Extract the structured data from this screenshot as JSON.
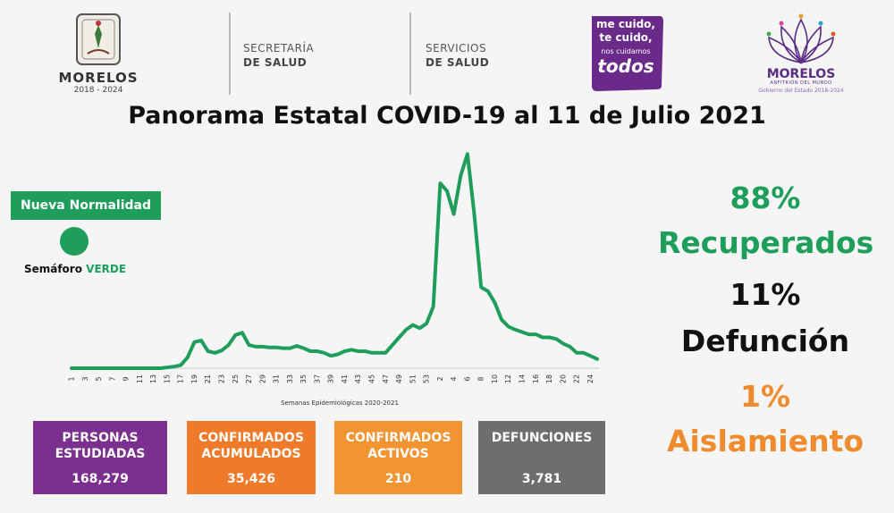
{
  "header": {
    "left_logo_name": "MORELOS",
    "left_logo_years": "2018 - 2024",
    "secretaria_line1": "SECRETARÍA",
    "secretaria_line2": "DE SALUD",
    "servicios_line1": "SERVICIOS",
    "servicios_line2": "DE SALUD",
    "campaign_lines": [
      "me cuido,",
      "te cuido,",
      "nos cuidamos",
      "todos"
    ],
    "right_logo_name": "MORELOS",
    "right_logo_sub": "ANFITRIÓN DEL MUNDO",
    "right_logo_gov": "Gobierno del Estado 2018-2024",
    "colors": {
      "purple": "#5b2d86",
      "campaign": "#6a2a8a"
    }
  },
  "title": "Panorama Estatal COVID-19 al 11 de Julio 2021",
  "status": {
    "badge": "Nueva Normalidad",
    "semaforo_label": "Semáforo",
    "semaforo_value": "VERDE",
    "color": "#1e9e5a"
  },
  "stats": {
    "recuperados_pct": "88%",
    "recuperados_label": "Recuperados",
    "defuncion_pct": "11%",
    "defuncion_label": "Defunción",
    "aislamiento_pct": "1%",
    "aislamiento_label": "Aislamiento"
  },
  "boxes": [
    {
      "line1": "PERSONAS",
      "line2": "ESTUDIADAS",
      "value": "168,279",
      "color": "#7b2f8e"
    },
    {
      "line1": "CONFIRMADOS",
      "line2": "ACUMULADOS",
      "value": "35,426",
      "color": "#ef7a2a"
    },
    {
      "line1": "CONFIRMADOS",
      "line2": "ACTIVOS",
      "value": "210",
      "color": "#f39433"
    },
    {
      "line1": "DEFUNCIONES",
      "line2": "",
      "value": "3,781",
      "color": "#6e6e6e"
    }
  ],
  "chart_data": {
    "type": "line",
    "title": "",
    "xlabel": "Semanas Epidemiológicas 2020-2021",
    "ylabel": "",
    "color": "#1e9e5a",
    "grid": false,
    "x": [
      "1",
      "2",
      "3",
      "4",
      "5",
      "6",
      "7",
      "8",
      "9",
      "10",
      "11",
      "12",
      "13",
      "14",
      "15",
      "16",
      "17",
      "18",
      "19",
      "20",
      "21",
      "22",
      "23",
      "24",
      "25",
      "26",
      "27",
      "28",
      "29",
      "30",
      "31",
      "32",
      "33",
      "34",
      "35",
      "36",
      "37",
      "38",
      "39",
      "40",
      "41",
      "42",
      "43",
      "44",
      "45",
      "46",
      "47",
      "48",
      "49",
      "50",
      "51",
      "52",
      "53",
      "1",
      "2",
      "3",
      "4",
      "5",
      "6",
      "7",
      "8",
      "9",
      "10",
      "11",
      "12",
      "13",
      "14",
      "15",
      "16",
      "17",
      "18",
      "19",
      "20",
      "21",
      "22",
      "23",
      "24",
      "25"
    ],
    "tick_labels": [
      "1",
      "3",
      "5",
      "7",
      "9",
      "11",
      "13",
      "15",
      "17",
      "19",
      "21",
      "23",
      "25",
      "27",
      "29",
      "31",
      "33",
      "35",
      "37",
      "39",
      "41",
      "43",
      "45",
      "47",
      "49",
      "51",
      "53",
      "2",
      "4",
      "6",
      "8",
      "10",
      "12",
      "14",
      "16",
      "18",
      "20",
      "22",
      "24"
    ],
    "values": [
      0,
      0,
      0,
      0,
      0,
      0,
      0,
      0,
      0,
      0,
      0,
      0,
      0,
      0,
      1,
      2,
      4,
      14,
      34,
      36,
      22,
      20,
      23,
      30,
      43,
      46,
      30,
      28,
      28,
      27,
      27,
      26,
      26,
      29,
      26,
      22,
      22,
      20,
      16,
      18,
      22,
      24,
      22,
      22,
      20,
      20,
      20,
      30,
      40,
      50,
      56,
      52,
      58,
      80,
      240,
      230,
      200,
      250,
      278,
      200,
      105,
      100,
      85,
      63,
      54,
      50,
      47,
      44,
      44,
      40,
      40,
      38,
      32,
      28,
      20,
      20,
      16,
      12
    ],
    "ylim": [
      0,
      290
    ]
  }
}
